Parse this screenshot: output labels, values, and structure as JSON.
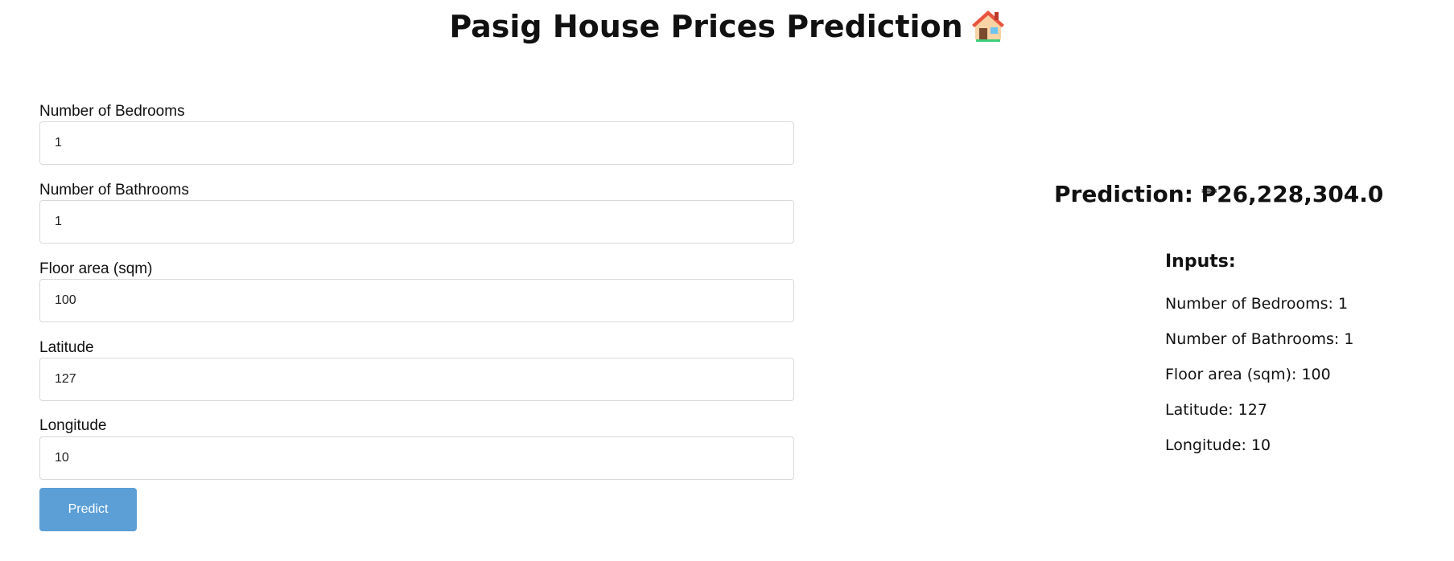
{
  "page": {
    "title": "Pasig House Prices Prediction",
    "title_icon": "house-icon"
  },
  "form": {
    "fields": [
      {
        "label": "Number of Bedrooms",
        "value": "1"
      },
      {
        "label": "Number of Bathrooms",
        "value": "1"
      },
      {
        "label": "Floor area (sqm)",
        "value": "100"
      },
      {
        "label": "Latitude",
        "value": "127"
      },
      {
        "label": "Longitude",
        "value": "10"
      }
    ],
    "predict_label": "Predict"
  },
  "result": {
    "prediction_label": "Prediction:",
    "prediction_value": "₱26,228,304.0",
    "inputs_heading": "Inputs:",
    "summary": [
      {
        "label": "Number of Bedrooms:",
        "value": "1"
      },
      {
        "label": "Number of Bathrooms:",
        "value": "1"
      },
      {
        "label": "Floor area (sqm):",
        "value": "100"
      },
      {
        "label": "Latitude:",
        "value": "127"
      },
      {
        "label": "Longitude:",
        "value": "10"
      }
    ]
  },
  "colors": {
    "button": "#5b9fd6",
    "input_border": "#d9d9d9",
    "text": "#111111"
  }
}
